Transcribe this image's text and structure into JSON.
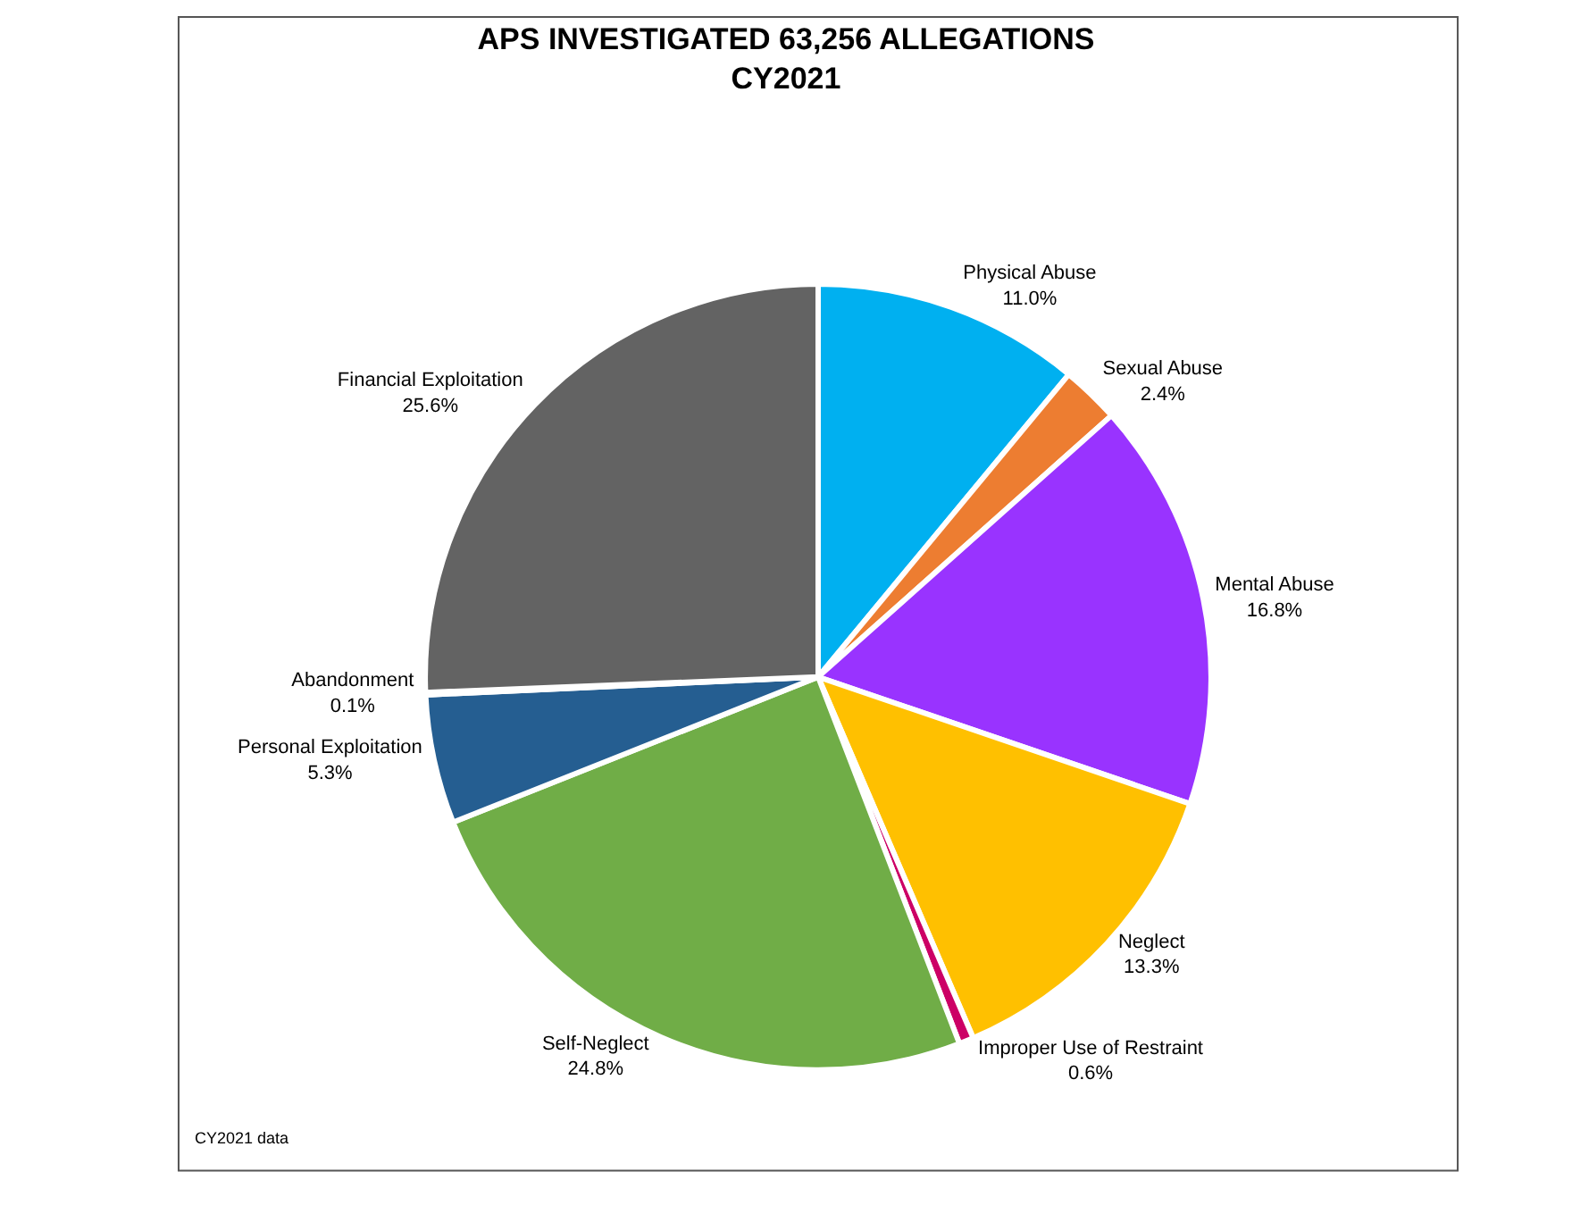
{
  "chart_data": {
    "type": "pie",
    "title": "APS INVESTIGATED 63,256 ALLEGATIONS\nCY2021",
    "categories": [
      "Physical Abuse",
      "Sexual Abuse",
      "Mental Abuse",
      "Neglect",
      "Improper Use of Restraint",
      "Self-Neglect",
      "Personal Exploitation",
      "Abandonment",
      "Financial Exploitation"
    ],
    "values": [
      11.0,
      2.4,
      16.8,
      13.3,
      0.6,
      24.8,
      5.3,
      0.1,
      25.6
    ],
    "value_labels": [
      "11.0%",
      "2.4%",
      "16.8%",
      "13.3%",
      "0.6%",
      "24.8%",
      "5.3%",
      "0.1%",
      "25.6%"
    ],
    "colors": [
      "#00b0f0",
      "#ed7d31",
      "#9933ff",
      "#ffc000",
      "#cc0066",
      "#70ad47",
      "#255e91",
      "#c00000",
      "#636363"
    ],
    "legend": false,
    "annotations": [
      "CY2021 data"
    ]
  }
}
